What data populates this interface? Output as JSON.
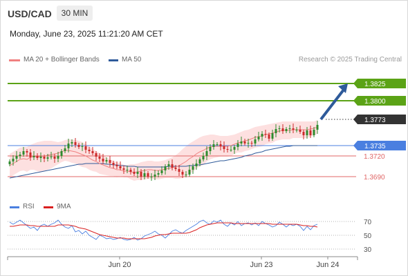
{
  "header": {
    "pair": "USD/CAD",
    "timeframe": "30 MIN",
    "datetime": "Monday, June 23, 2025 11:21:20 AM CET"
  },
  "legend": {
    "ma20_bb": "MA 20 + Bollinger Bands",
    "ma50": "MA 50",
    "credit": "Research © 2025 Trading Central",
    "rsi": "RSI",
    "rsi_ma": "9MA"
  },
  "colors": {
    "green_level": "#5ba316",
    "blue_level": "#4a7fe0",
    "red_level": "#e06666",
    "current_price": "#333333",
    "ma20": "#f08080",
    "ma50": "#2e5a9a",
    "band_fill": "#fde0e0",
    "candle_up": "#2e8b2e",
    "candle_down": "#cc2a2a",
    "arrow": "#2e5a9a",
    "rsi_line": "#4a7fe0",
    "rsi_ma_line": "#d92020"
  },
  "chart_data": [
    {
      "type": "candlestick",
      "title": "USD/CAD",
      "timeframe": "30 MIN",
      "x_ticks": [
        "Jun 20",
        "Jun 23",
        "Jun 24"
      ],
      "ylim": [
        1.3665,
        1.3845
      ],
      "levels": [
        {
          "label": "1.3825",
          "value": 1.3825,
          "kind": "resistance",
          "color": "#5ba316",
          "label_style": "box"
        },
        {
          "label": "1.3800",
          "value": 1.38,
          "kind": "resistance",
          "color": "#5ba316",
          "label_style": "box"
        },
        {
          "label": "1.3773",
          "value": 1.3773,
          "kind": "current",
          "color": "#333333",
          "label_style": "box"
        },
        {
          "label": "1.3735",
          "value": 1.3735,
          "kind": "pivot",
          "color": "#4a7fe0",
          "label_style": "box"
        },
        {
          "label": "1.3720",
          "value": 1.372,
          "kind": "support",
          "color": "#e06666",
          "label_style": "text"
        },
        {
          "label": "1.3690",
          "value": 1.369,
          "kind": "support",
          "color": "#e06666",
          "label_style": "text"
        }
      ],
      "close": [
        1.3712,
        1.3716,
        1.372,
        1.3722,
        1.3727,
        1.3725,
        1.3718,
        1.372,
        1.3717,
        1.3719,
        1.3716,
        1.3718,
        1.3719,
        1.3716,
        1.372,
        1.3727,
        1.3731,
        1.3738,
        1.374,
        1.3736,
        1.3733,
        1.3734,
        1.3729,
        1.3727,
        1.3724,
        1.3719,
        1.3716,
        1.3712,
        1.3714,
        1.371,
        1.3707,
        1.3705,
        1.3702,
        1.37,
        1.37,
        1.3697,
        1.3694,
        1.3697,
        1.369,
        1.3695,
        1.369,
        1.369,
        1.3693,
        1.3695,
        1.3699,
        1.3705,
        1.3708,
        1.3703,
        1.3701,
        1.3697,
        1.3693,
        1.3693,
        1.37,
        1.3705,
        1.3709,
        1.3715,
        1.372,
        1.3727,
        1.3733,
        1.3737,
        1.3737,
        1.3734,
        1.373,
        1.3729,
        1.3729,
        1.3733,
        1.3738,
        1.3741,
        1.3738,
        1.3739,
        1.3738,
        1.3744,
        1.3748,
        1.3752,
        1.3751,
        1.3745,
        1.3753,
        1.3759,
        1.376,
        1.3756,
        1.3759,
        1.376,
        1.3758,
        1.3758,
        1.3755,
        1.375,
        1.3757,
        1.375,
        1.3758,
        1.3765
      ],
      "ma20": [
        1.3706,
        1.3709,
        1.3712,
        1.3715,
        1.3716,
        1.3715,
        1.3718,
        1.3719,
        1.3719,
        1.3719,
        1.372,
        1.3721,
        1.3722,
        1.3723,
        1.3724,
        1.3726,
        1.3728,
        1.3728,
        1.3727,
        1.3726,
        1.3724,
        1.3722,
        1.372,
        1.3717,
        1.3714,
        1.3712,
        1.3709,
        1.3707,
        1.3705,
        1.3703,
        1.3702,
        1.37,
        1.37,
        1.3698,
        1.3698,
        1.3697,
        1.3696,
        1.3697,
        1.3698,
        1.3699,
        1.37,
        1.37,
        1.3699,
        1.3699,
        1.37,
        1.3701,
        1.3702,
        1.3703,
        1.3704,
        1.3706,
        1.3709,
        1.3712,
        1.3716,
        1.3719,
        1.3723,
        1.3726,
        1.3728,
        1.3731,
        1.3733,
        1.3734,
        1.3734,
        1.3734,
        1.3734,
        1.3734,
        1.3735,
        1.3737,
        1.3739,
        1.374,
        1.3742,
        1.3743,
        1.3745,
        1.3747,
        1.3748,
        1.3749,
        1.3751,
        1.3752,
        1.3753,
        1.3755,
        1.3756,
        1.3757,
        1.3757,
        1.3757,
        1.3758,
        1.3758,
        1.3758,
        1.3758,
        1.3758,
        1.3759,
        1.376,
        1.3762
      ],
      "bb_upper": [
        1.3723,
        1.3726,
        1.3729,
        1.3732,
        1.3733,
        1.3733,
        1.3736,
        1.3738,
        1.374,
        1.3741,
        1.3742,
        1.3742,
        1.3742,
        1.3741,
        1.374,
        1.3741,
        1.3743,
        1.3744,
        1.3744,
        1.3743,
        1.3742,
        1.374,
        1.3737,
        1.3734,
        1.373,
        1.3727,
        1.3724,
        1.3721,
        1.3718,
        1.3715,
        1.3713,
        1.3711,
        1.3709,
        1.3707,
        1.3707,
        1.3708,
        1.3708,
        1.3709,
        1.3711,
        1.3712,
        1.3713,
        1.3713,
        1.3712,
        1.3712,
        1.3713,
        1.3714,
        1.3716,
        1.3718,
        1.3721,
        1.3725,
        1.373,
        1.3734,
        1.3738,
        1.3741,
        1.3744,
        1.3747,
        1.3749,
        1.375,
        1.3751,
        1.3751,
        1.375,
        1.3749,
        1.3749,
        1.3749,
        1.375,
        1.3751,
        1.3753,
        1.3755,
        1.3757,
        1.3758,
        1.376,
        1.3762,
        1.3763,
        1.3764,
        1.3765,
        1.3766,
        1.3767,
        1.3768,
        1.3769,
        1.377,
        1.377,
        1.377,
        1.377,
        1.377,
        1.377,
        1.377,
        1.377,
        1.377,
        1.377,
        1.3772
      ],
      "bb_lower": [
        1.3689,
        1.3692,
        1.3695,
        1.3698,
        1.3699,
        1.3697,
        1.37,
        1.37,
        1.3698,
        1.3697,
        1.3698,
        1.37,
        1.3702,
        1.3705,
        1.3708,
        1.3711,
        1.3713,
        1.3712,
        1.371,
        1.3709,
        1.3706,
        1.3704,
        1.3703,
        1.37,
        1.3698,
        1.3697,
        1.3694,
        1.3693,
        1.3692,
        1.3691,
        1.3691,
        1.3689,
        1.3691,
        1.3689,
        1.3689,
        1.3686,
        1.3684,
        1.3685,
        1.3685,
        1.3686,
        1.3687,
        1.3687,
        1.3686,
        1.3686,
        1.3687,
        1.3688,
        1.3688,
        1.3688,
        1.3687,
        1.3687,
        1.3688,
        1.369,
        1.3694,
        1.3697,
        1.3702,
        1.3705,
        1.3707,
        1.3712,
        1.3715,
        1.3717,
        1.3718,
        1.3719,
        1.3719,
        1.3719,
        1.372,
        1.3723,
        1.3725,
        1.3725,
        1.3727,
        1.3728,
        1.373,
        1.3732,
        1.3733,
        1.3734,
        1.3737,
        1.3738,
        1.3739,
        1.3742,
        1.3743,
        1.3744,
        1.3744,
        1.3744,
        1.3746,
        1.3746,
        1.3746,
        1.3746,
        1.3746,
        1.3748,
        1.375,
        1.3752
      ],
      "ma50": [
        1.3688,
        1.3689,
        1.369,
        1.3691,
        1.3692,
        1.3693,
        1.3694,
        1.3695,
        1.3696,
        1.3697,
        1.3698,
        1.3699,
        1.37,
        1.3701,
        1.3702,
        1.3703,
        1.3704,
        1.3705,
        1.3706,
        1.3707,
        1.3708,
        1.3708,
        1.3709,
        1.3709,
        1.3709,
        1.3709,
        1.3709,
        1.3709,
        1.3708,
        1.3708,
        1.3707,
        1.3707,
        1.3706,
        1.3706,
        1.3705,
        1.3705,
        1.3705,
        1.3704,
        1.3704,
        1.3704,
        1.3704,
        1.3704,
        1.3704,
        1.3704,
        1.3704,
        1.3704,
        1.3705,
        1.3705,
        1.3705,
        1.3705,
        1.3705,
        1.3705,
        1.3706,
        1.3706,
        1.3707,
        1.3707,
        1.3708,
        1.3709,
        1.371,
        1.3711,
        1.3712,
        1.3713,
        1.3713,
        1.3714,
        1.3715,
        1.3716,
        1.3717,
        1.3718,
        1.372,
        1.3721,
        1.3722,
        1.3724,
        1.3725,
        1.3726,
        1.3728,
        1.3729,
        1.373,
        1.3731,
        1.3732,
        1.3733,
        1.3734,
        1.3734,
        1.3735,
        1.3735,
        1.3735,
        1.3735,
        1.3735,
        1.3735,
        1.3735,
        1.3735
      ],
      "forecast_arrow": {
        "from": 1.3773,
        "to": 1.3825
      }
    },
    {
      "type": "line",
      "title": "RSI",
      "series": [
        {
          "name": "RSI",
          "values": [
            69,
            66,
            69,
            72,
            68,
            64,
            60,
            62,
            57,
            64,
            66,
            63,
            66,
            68,
            72,
            66,
            62,
            60,
            64,
            55,
            57,
            52,
            56,
            50,
            47,
            44,
            50,
            48,
            45,
            46,
            44,
            45,
            47,
            44,
            43,
            44,
            47,
            43,
            45,
            49,
            51,
            53,
            56,
            52,
            50,
            46,
            51,
            56,
            58,
            55,
            53,
            57,
            60,
            63,
            66,
            70,
            72,
            68,
            66,
            71,
            69,
            72,
            66,
            63,
            68,
            65,
            70,
            64,
            67,
            68,
            65,
            68,
            64,
            70,
            67,
            65,
            62,
            64,
            69,
            66,
            62,
            66,
            64,
            66,
            63,
            57,
            63,
            58,
            64,
            66
          ]
        },
        {
          "name": "9MA",
          "values": [
            63,
            63,
            64,
            65,
            65,
            65,
            64,
            64,
            63,
            63,
            63,
            63,
            63,
            63,
            65,
            65,
            65,
            65,
            64,
            63,
            61,
            60,
            59,
            57,
            55,
            53,
            51,
            50,
            49,
            48,
            47,
            46,
            46,
            46,
            45,
            45,
            45,
            45,
            45,
            45,
            46,
            47,
            49,
            50,
            51,
            51,
            52,
            53,
            53,
            53,
            53,
            53,
            54,
            56,
            58,
            61,
            63,
            65,
            66,
            67,
            68,
            68,
            68,
            68,
            68,
            67,
            67,
            67,
            67,
            67,
            67,
            67,
            67,
            67,
            67,
            67,
            66,
            66,
            66,
            66,
            66,
            66,
            66,
            66,
            65,
            64,
            64,
            63,
            63,
            62
          ]
        }
      ],
      "ylim": [
        25,
        75
      ],
      "y_ticks": [
        70,
        50,
        30
      ]
    }
  ]
}
